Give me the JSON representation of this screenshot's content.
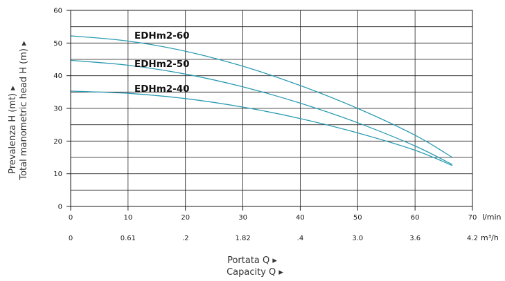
{
  "chart_data": {
    "type": "line",
    "xlabel": [
      "Portata Q ▸",
      "Capacity Q ▸"
    ],
    "ylabel": [
      "Prevalenza H (mt) ▸",
      "Total manometric head H (m) ▸"
    ],
    "x_unit": "l/min",
    "x2_unit": "m³/h",
    "xlim": [
      0,
      70
    ],
    "ylim": [
      0,
      60
    ],
    "x_ticks": [
      0,
      10,
      20,
      30,
      40,
      50,
      60,
      70
    ],
    "y_ticks": [
      0,
      10,
      20,
      30,
      40,
      50,
      60
    ],
    "x2_tick_labels": [
      "0",
      "0.61",
      ".2",
      "1.82",
      ".4",
      "3.0",
      "3.6",
      "4.2"
    ],
    "grid": "horizontal every 5 m, vertical every 10 l/min",
    "line_color": "#2a9bb2",
    "series": [
      {
        "name": "EDHm2-60",
        "x": [
          0,
          10,
          20,
          30,
          40,
          50,
          60,
          66.5
        ],
        "y": [
          52.2,
          50.6,
          47.5,
          42.9,
          37.0,
          30.0,
          21.8,
          15.0
        ]
      },
      {
        "name": "EDHm2-50",
        "x": [
          0,
          10,
          20,
          30,
          40,
          50,
          60,
          66.5
        ],
        "y": [
          44.7,
          43.2,
          40.5,
          36.6,
          31.6,
          25.6,
          18.5,
          12.8
        ]
      },
      {
        "name": "EDHm2-40",
        "x": [
          0,
          10,
          20,
          30,
          40,
          50,
          60,
          66.5
        ],
        "y": [
          35.3,
          34.6,
          33.0,
          30.4,
          26.9,
          22.5,
          17.2,
          12.5
        ]
      }
    ]
  }
}
